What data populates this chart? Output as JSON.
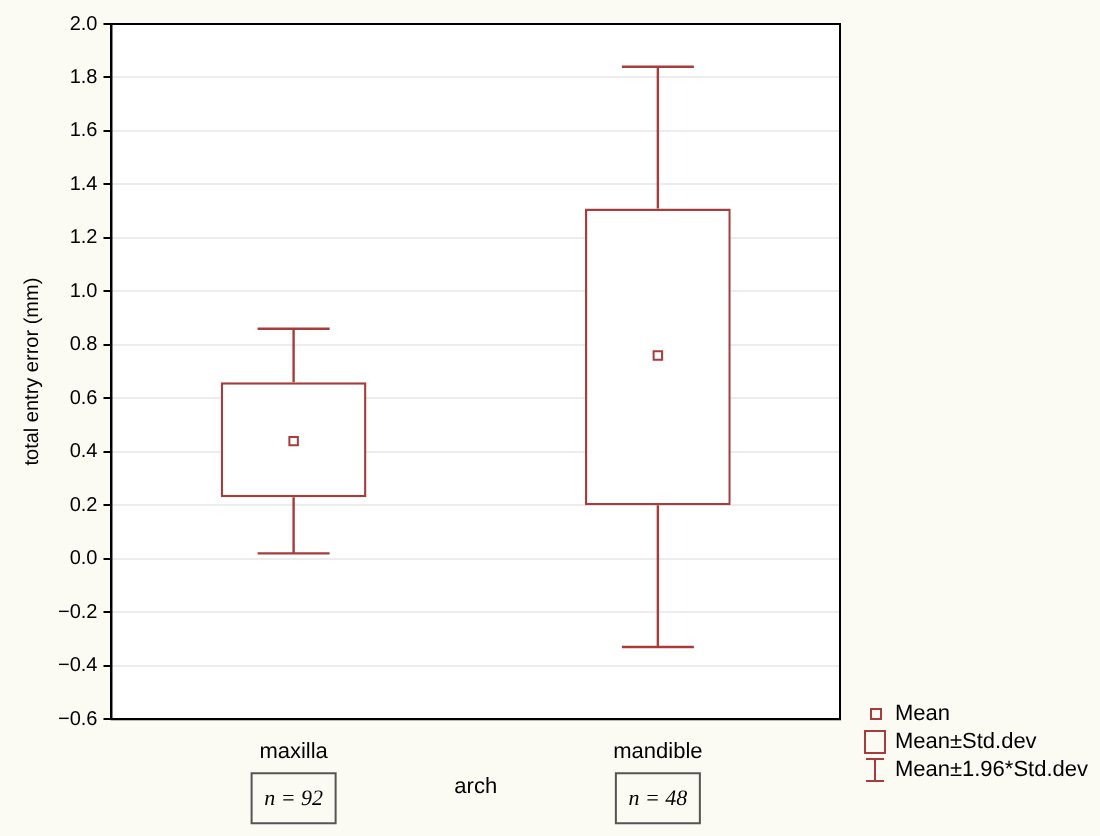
{
  "chart_data": {
    "type": "box",
    "xlabel": "arch",
    "ylabel": "total entry error (mm)",
    "categories": [
      "maxilla",
      "mandible"
    ],
    "boxes": [
      {
        "low": 0.02,
        "q1": 0.23,
        "q3": 0.66,
        "high": 0.86,
        "mean": 0.44
      },
      {
        "low": -0.33,
        "q1": 0.2,
        "q3": 1.31,
        "high": 1.84,
        "mean": 0.76
      }
    ],
    "color": "#a63c3c",
    "ylim": [
      -0.6,
      2.0
    ],
    "yticks": [
      {
        "value": -0.6,
        "label": "−0.6"
      },
      {
        "value": -0.4,
        "label": "−0.4"
      },
      {
        "value": -0.2,
        "label": "−0.2"
      },
      {
        "value": 0,
        "label": "0.0"
      },
      {
        "value": 0.2,
        "label": "0.2"
      },
      {
        "value": 0.4,
        "label": "0.4"
      },
      {
        "value": 0.6,
        "label": "0.6"
      },
      {
        "value": 0.8,
        "label": "0.8"
      },
      {
        "value": 1.0,
        "label": "1.0"
      },
      {
        "value": 1.2,
        "label": "1.2"
      },
      {
        "value": 1.4,
        "label": "1.4"
      },
      {
        "value": 1.6,
        "label": "1.6"
      },
      {
        "value": 1.8,
        "label": "1.8"
      },
      {
        "value": 2.0,
        "label": "2.0"
      }
    ],
    "grid": "y",
    "annotations": [
      "Mean",
      "Mean±Std.dev",
      "Mean±1.96*Std.dev",
      "n = 92",
      "n = 48"
    ]
  }
}
